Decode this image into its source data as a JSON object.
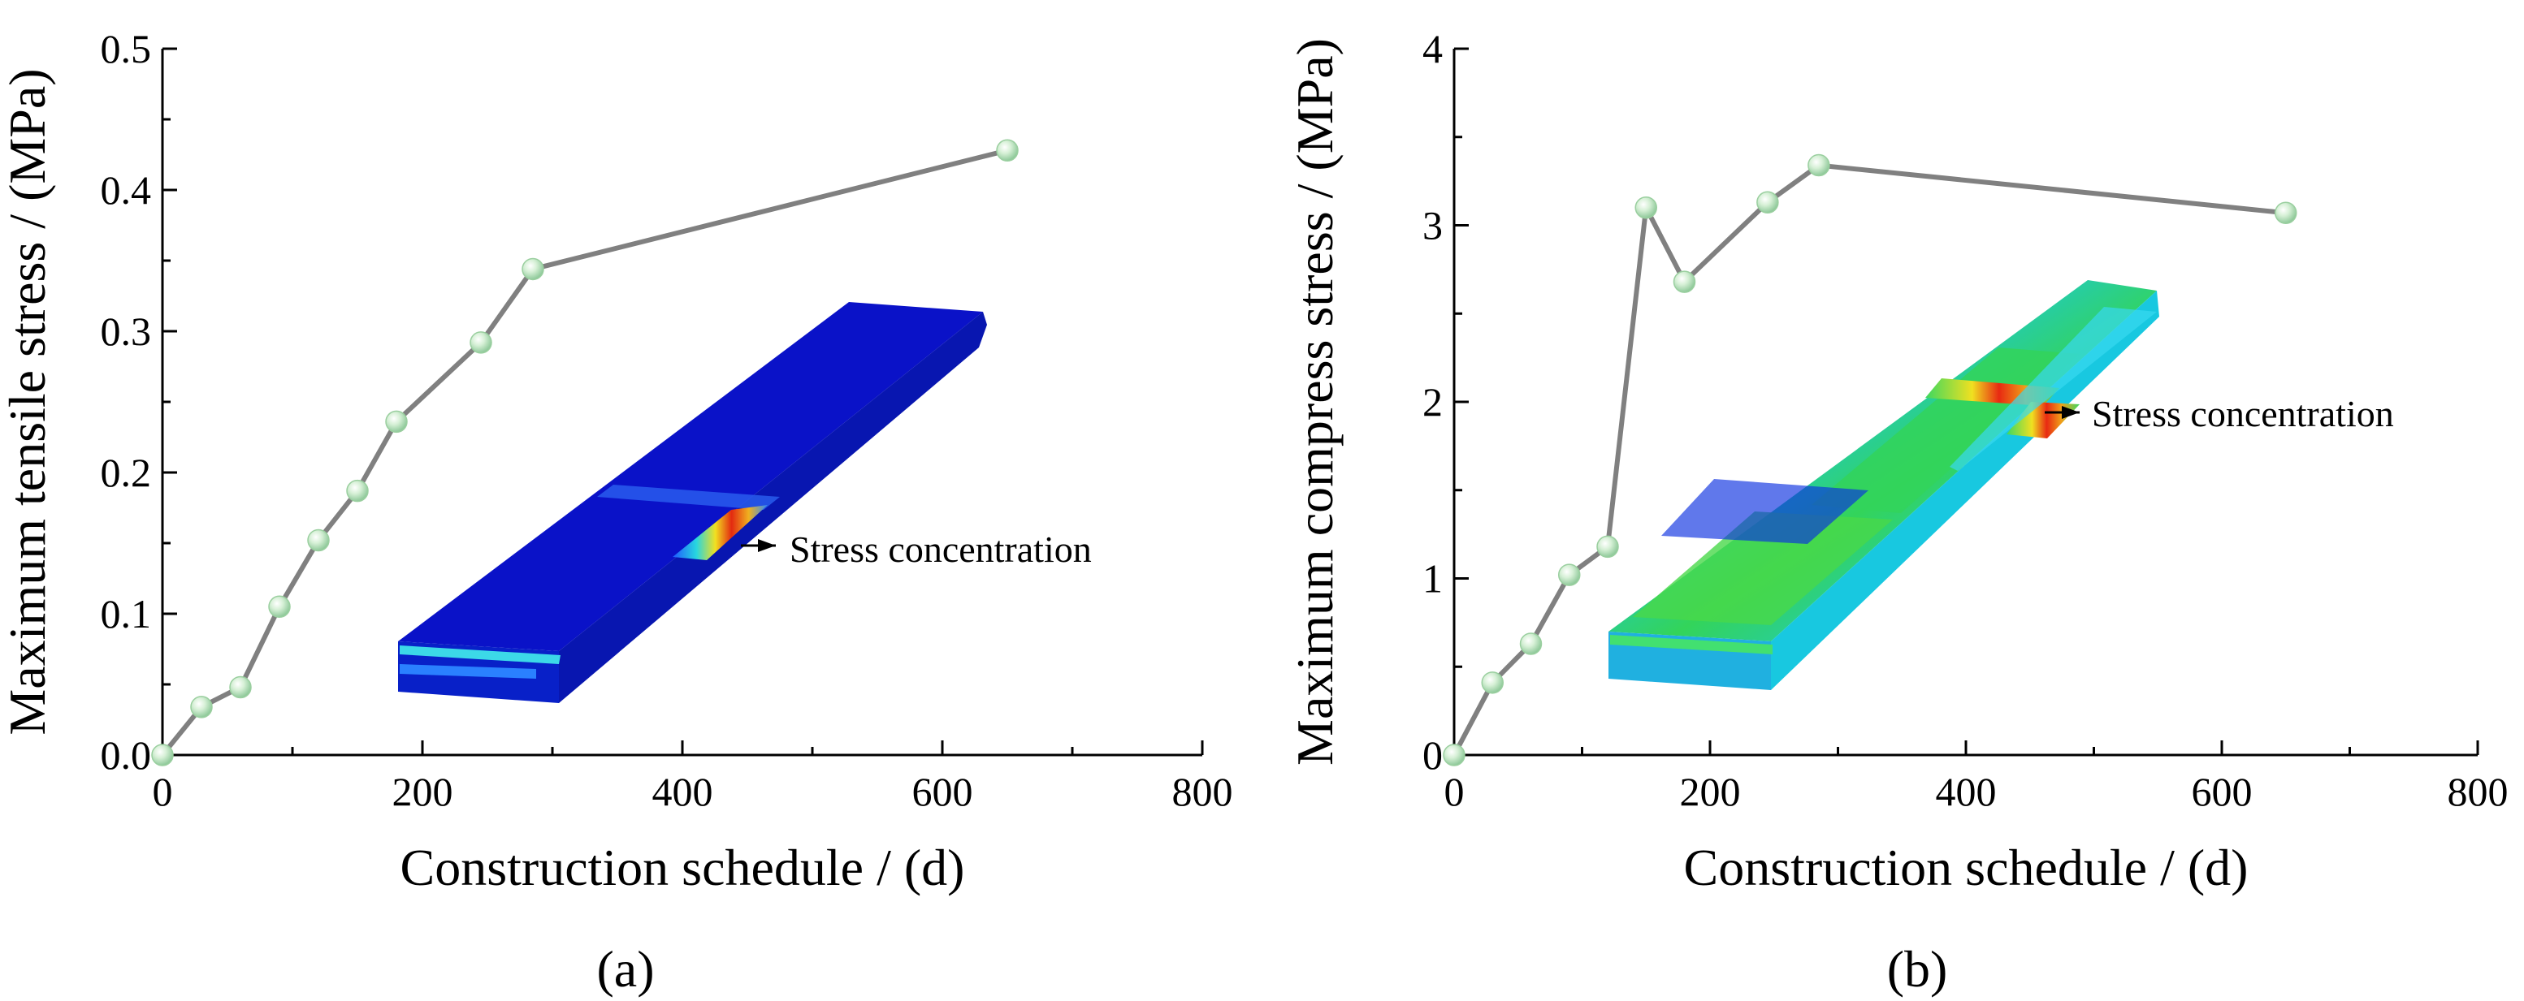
{
  "chart_data": [
    {
      "type": "line",
      "panel_label": "(a)",
      "xlabel": "Construction schedule / (d)",
      "ylabel": "Maximum tensile stress / (MPa)",
      "xlim": [
        0,
        800
      ],
      "ylim": [
        0,
        0.5
      ],
      "xticks": [
        0,
        200,
        400,
        600,
        800
      ],
      "yticks": [
        0.0,
        0.1,
        0.2,
        0.3,
        0.4,
        0.5
      ],
      "ytick_labels": [
        "0.0",
        "0.1",
        "0.2",
        "0.3",
        "0.4",
        "0.5"
      ],
      "xtick_labels": [
        "0",
        "200",
        "400",
        "600",
        "800"
      ],
      "x": [
        0,
        30,
        60,
        90,
        120,
        150,
        180,
        245,
        285,
        650
      ],
      "y": [
        0.0,
        0.034,
        0.048,
        0.105,
        0.152,
        0.187,
        0.236,
        0.292,
        0.344,
        0.428
      ],
      "annotation": "Stress concentration",
      "line_color": "#808080",
      "marker_color": "#b9e3b9"
    },
    {
      "type": "line",
      "panel_label": "(b)",
      "xlabel": "Construction schedule / (d)",
      "ylabel": "Maximum compress stress / (MPa)",
      "xlim": [
        0,
        800
      ],
      "ylim": [
        0,
        4
      ],
      "xticks": [
        0,
        200,
        400,
        600,
        800
      ],
      "yticks": [
        0,
        1,
        2,
        3,
        4
      ],
      "ytick_labels": [
        "0",
        "1",
        "2",
        "3",
        "4"
      ],
      "xtick_labels": [
        "0",
        "200",
        "400",
        "600",
        "800"
      ],
      "x": [
        0,
        30,
        60,
        90,
        120,
        150,
        180,
        245,
        285,
        650
      ],
      "y": [
        0.0,
        0.41,
        0.63,
        1.02,
        1.18,
        3.1,
        2.68,
        3.13,
        3.34,
        3.07
      ],
      "annotation": "Stress concentration",
      "line_color": "#808080",
      "marker_color": "#b9e3b9"
    }
  ]
}
